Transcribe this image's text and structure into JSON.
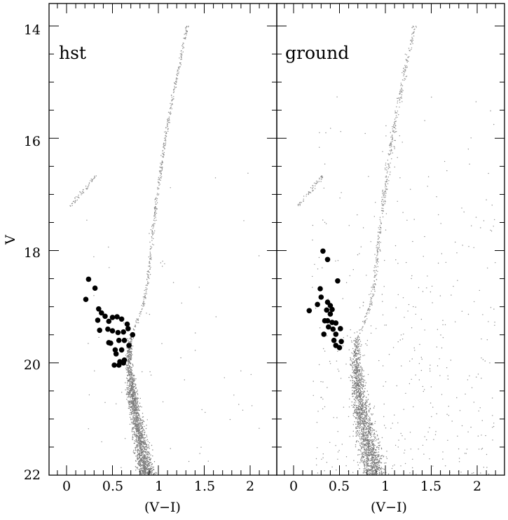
{
  "chart_data": {
    "type": "scatter",
    "ylabel": "V",
    "yticks": [
      14,
      16,
      18,
      20,
      22
    ],
    "ylim": [
      13.6,
      22.0
    ],
    "y_inverted": true,
    "xlim": [
      -0.2,
      2.3
    ],
    "grid": false,
    "panels": [
      {
        "label": "hst",
        "xlabel": "(V−I)",
        "xticks": [
          "0",
          "0.5",
          "1",
          "1.5",
          "2"
        ],
        "highlighted_stars": {
          "x": [
            0.21,
            0.24,
            0.31,
            0.35,
            0.34,
            0.38,
            0.36,
            0.42,
            0.46,
            0.5,
            0.55,
            0.6,
            0.66,
            0.45,
            0.5,
            0.56,
            0.62,
            0.67,
            0.72,
            0.57,
            0.63,
            0.68,
            0.46,
            0.53,
            0.6,
            0.54,
            0.58,
            0.63,
            0.52,
            0.57,
            0.48,
            0.62
          ],
          "y": [
            18.87,
            18.51,
            18.67,
            19.04,
            19.24,
            19.11,
            19.42,
            19.17,
            19.26,
            19.19,
            19.18,
            19.22,
            19.31,
            19.4,
            19.43,
            19.46,
            19.45,
            19.39,
            19.5,
            19.6,
            19.6,
            19.69,
            19.64,
            19.77,
            19.77,
            19.84,
            19.98,
            19.95,
            20.04,
            20.04,
            19.65,
            20.0
          ]
        },
        "cmd_points_drawn": "dense gray point cloud: main sequence, turnoff near (V−I)=0.7, V=19.5; red giant branch rising to V≈14; horizontal branch near V≈17"
      },
      {
        "label": "ground",
        "xlabel": "(V−I)",
        "xticks": [
          "0",
          "0.5",
          "1",
          "1.5",
          "2"
        ],
        "highlighted_stars": {
          "x": [
            0.32,
            0.37,
            0.48,
            0.29,
            0.3,
            0.26,
            0.37,
            0.4,
            0.17,
            0.36,
            0.4,
            0.34,
            0.42,
            0.46,
            0.38,
            0.43,
            0.51,
            0.46,
            0.33,
            0.44,
            0.52,
            0.46,
            0.5,
            0.37,
            0.42
          ],
          "y": [
            18.01,
            18.16,
            18.54,
            18.68,
            18.83,
            18.96,
            18.92,
            18.98,
            19.07,
            19.06,
            19.13,
            19.25,
            19.28,
            19.29,
            19.36,
            19.4,
            19.39,
            19.49,
            19.49,
            19.6,
            19.62,
            19.69,
            19.73,
            19.25,
            19.05
          ]
        },
        "cmd_points_drawn": "dense gray point cloud similar to hst panel with more scattered field stars"
      }
    ]
  }
}
